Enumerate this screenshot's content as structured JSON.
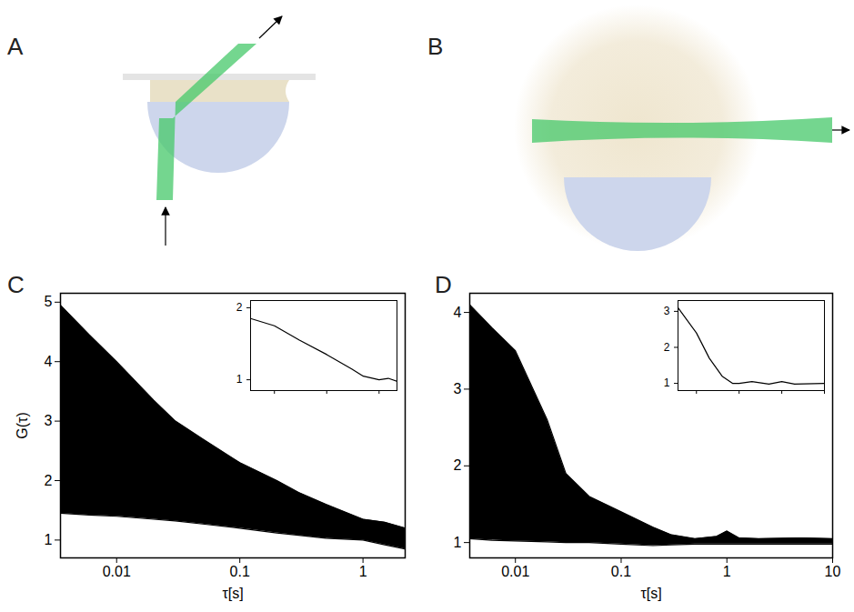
{
  "diagrams": [
    {
      "panel_label": "A"
    },
    {
      "panel_label": "B"
    }
  ],
  "chart_data": [
    {
      "type": "area",
      "panel_label": "C",
      "xlabel": "τ[s]",
      "ylabel": "G(τ)",
      "log": "x",
      "color": "#000000",
      "x": [
        0.0035,
        0.006,
        0.01,
        0.02,
        0.03,
        0.05,
        0.1,
        0.2,
        0.3,
        0.5,
        1,
        1.5,
        2.2
      ],
      "upper": [
        4.95,
        4.45,
        4.0,
        3.35,
        3.0,
        2.7,
        2.3,
        2.0,
        1.8,
        1.6,
        1.35,
        1.3,
        1.2
      ],
      "lower": [
        1.45,
        1.42,
        1.4,
        1.35,
        1.32,
        1.27,
        1.2,
        1.12,
        1.08,
        1.03,
        1.0,
        0.92,
        0.85
      ],
      "xlim": [
        0.0035,
        2.2
      ],
      "xticks": [
        0.01,
        0.1,
        1
      ],
      "ylim": [
        0.7,
        5.15
      ],
      "yticks": [
        1,
        2,
        3,
        4,
        5
      ],
      "inset": {
        "type": "line",
        "log": "x",
        "color": "#000000",
        "tick_labels": "y",
        "x": [
          0.0035,
          0.01,
          0.03,
          0.1,
          0.3,
          0.5,
          1,
          1.5,
          2.2
        ],
        "values": [
          1.85,
          1.75,
          1.55,
          1.35,
          1.15,
          1.05,
          1.0,
          1.02,
          0.98
        ],
        "xlim": [
          0.0035,
          2.2
        ],
        "xticks": [
          0.01,
          0.1,
          1
        ],
        "ylim": [
          0.85,
          2.1
        ],
        "yticks": [
          1,
          2
        ]
      }
    },
    {
      "type": "area",
      "panel_label": "D",
      "xlabel": "τ[s]",
      "log": "x",
      "color": "#000000",
      "x": [
        0.0037,
        0.006,
        0.01,
        0.02,
        0.03,
        0.05,
        0.1,
        0.2,
        0.3,
        0.5,
        0.8,
        1,
        1.3,
        2,
        5,
        10
      ],
      "upper": [
        4.1,
        3.8,
        3.5,
        2.6,
        1.9,
        1.6,
        1.4,
        1.2,
        1.1,
        1.05,
        1.08,
        1.15,
        1.06,
        1.05,
        1.06,
        1.05
      ],
      "lower": [
        1.05,
        1.03,
        1.02,
        1.01,
        1.0,
        1.0,
        0.98,
        0.96,
        0.97,
        0.98,
        0.98,
        0.98,
        0.98,
        0.98,
        0.98,
        0.98
      ],
      "xlim": [
        0.0037,
        10
      ],
      "xticks": [
        0.01,
        0.1,
        1,
        10
      ],
      "ylim": [
        0.8,
        4.25
      ],
      "yticks": [
        1,
        2,
        3,
        4
      ],
      "inset": {
        "type": "line",
        "log": "x",
        "color": "#000000",
        "tick_labels": "y",
        "x": [
          0.0037,
          0.01,
          0.02,
          0.04,
          0.07,
          0.1,
          0.2,
          0.5,
          1,
          2,
          10
        ],
        "values": [
          3.1,
          2.4,
          1.7,
          1.2,
          1.0,
          1.0,
          1.05,
          0.98,
          1.05,
          0.98,
          1.0
        ],
        "xlim": [
          0.0037,
          10
        ],
        "xticks": [
          0.01,
          0.1,
          1,
          10
        ],
        "ylim": [
          0.8,
          3.3
        ],
        "yticks": [
          1,
          2,
          3
        ]
      }
    }
  ]
}
